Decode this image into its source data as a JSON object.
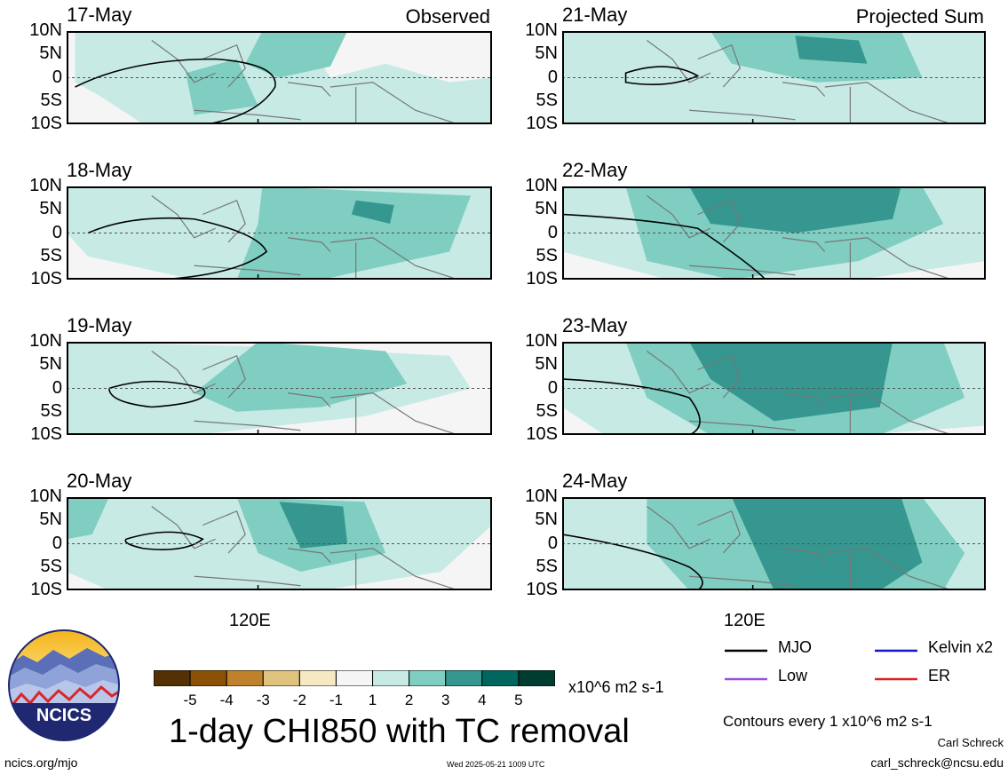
{
  "labels": {
    "observed": "Observed",
    "projected": "Projected Sum",
    "lat_ticks": [
      "10N",
      "5N",
      "0",
      "5S",
      "10S"
    ],
    "lon_left": "120E",
    "lon_right": "120E"
  },
  "panels_left": [
    {
      "date": "17-May"
    },
    {
      "date": "18-May"
    },
    {
      "date": "19-May"
    },
    {
      "date": "20-May"
    }
  ],
  "panels_right": [
    {
      "date": "21-May"
    },
    {
      "date": "22-May"
    },
    {
      "date": "23-May"
    },
    {
      "date": "24-May"
    }
  ],
  "legend": {
    "mjo": "MJO",
    "low": "Low",
    "kelvin": "Kelvin x2",
    "er": "ER",
    "colors": {
      "mjo": "#000000",
      "low": "#9b4fd6",
      "kelvin": "#1515c8",
      "er": "#e02020"
    }
  },
  "colorbar": {
    "labels": [
      "-5",
      "-4",
      "-3",
      "-2",
      "-1",
      "1",
      "2",
      "3",
      "4",
      "5"
    ],
    "colors": [
      "#543005",
      "#8c5109",
      "#bf812c",
      "#dfc27d",
      "#f6e8c3",
      "#f5f5f5",
      "#c7eae5",
      "#80cdc1",
      "#35978f",
      "#01665e",
      "#003c30"
    ],
    "units": "x10^6 m2 s-1"
  },
  "title": "1-day CHI850 with TC removal",
  "contour_note": "Contours every 1 x10^6 m2 s-1",
  "author": "Carl Schreck",
  "email": "carl_schreck@ncsu.edu",
  "site": "ncics.org/mjo",
  "timestamp": "Wed 2025-05-21 1009 UTC",
  "logo_text": "NCICS",
  "chart_data": {
    "type": "heatmap",
    "variable": "1-day CHI850 with TC removal",
    "units": "x10^6 m2 s-1",
    "lat_ticks": [
      "10N",
      "5N",
      "0",
      "5S",
      "10S"
    ],
    "lon_ticks": [
      "120E"
    ],
    "levels": [
      -5,
      -4,
      -3,
      -2,
      -1,
      1,
      2,
      3,
      4,
      5
    ],
    "contour_interval": 1,
    "observed_dates": [
      "17-May",
      "18-May",
      "19-May",
      "20-May"
    ],
    "projected_dates": [
      "21-May",
      "22-May",
      "23-May",
      "24-May"
    ],
    "contour_types": [
      "MJO",
      "Low",
      "Kelvin x2",
      "ER"
    ]
  }
}
